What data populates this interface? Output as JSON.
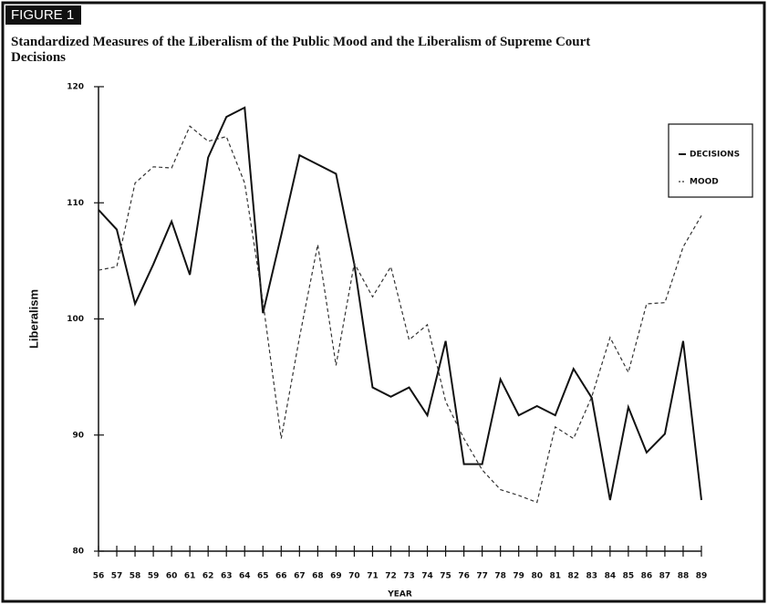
{
  "chart_data": {
    "type": "line",
    "figure_label": "FIGURE 1",
    "title": "Standardized Measures of the Liberalism of the Public Mood and the Liberalism of Supreme Court Decisions",
    "x_label": "YEAR",
    "y_label": "Liberalism",
    "categories": [
      "56",
      "57",
      "58",
      "59",
      "60",
      "61",
      "62",
      "63",
      "64",
      "65",
      "66",
      "67",
      "68",
      "69",
      "70",
      "71",
      "72",
      "73",
      "74",
      "75",
      "76",
      "77",
      "78",
      "79",
      "80",
      "81",
      "82",
      "83",
      "84",
      "85",
      "86",
      "87",
      "88",
      "89"
    ],
    "ylim": [
      80,
      120
    ],
    "yticks": [
      80,
      90,
      100,
      110,
      120
    ],
    "legend": "top-right",
    "series": [
      {
        "name": "DECISIONS",
        "color": "#111111",
        "dash": "none",
        "values": [
          109.4,
          107.7,
          101.3,
          104.7,
          108.4,
          103.8,
          113.9,
          117.4,
          118.2,
          100.5,
          107.2,
          114.1,
          113.3,
          112.5,
          104.7,
          94.1,
          93.3,
          94.1,
          91.7,
          98.1,
          87.5,
          87.5,
          94.8,
          91.7,
          92.5,
          91.7,
          95.7,
          93.2,
          84.4,
          92.4,
          88.5,
          90.1,
          98.1,
          84.4
        ]
      },
      {
        "name": "MOOD",
        "color": "#333333",
        "dash": "4,3",
        "values": [
          104.2,
          104.5,
          111.7,
          113.1,
          113.0,
          116.6,
          115.3,
          115.7,
          111.7,
          101.5,
          89.7,
          98.4,
          106.4,
          96.0,
          104.8,
          101.9,
          104.5,
          98.2,
          99.5,
          92.9,
          89.7,
          87.0,
          85.3,
          84.8,
          84.2,
          90.7,
          89.7,
          93.3,
          98.4,
          95.4,
          101.3,
          101.4,
          106.2,
          108.9
        ]
      }
    ]
  }
}
